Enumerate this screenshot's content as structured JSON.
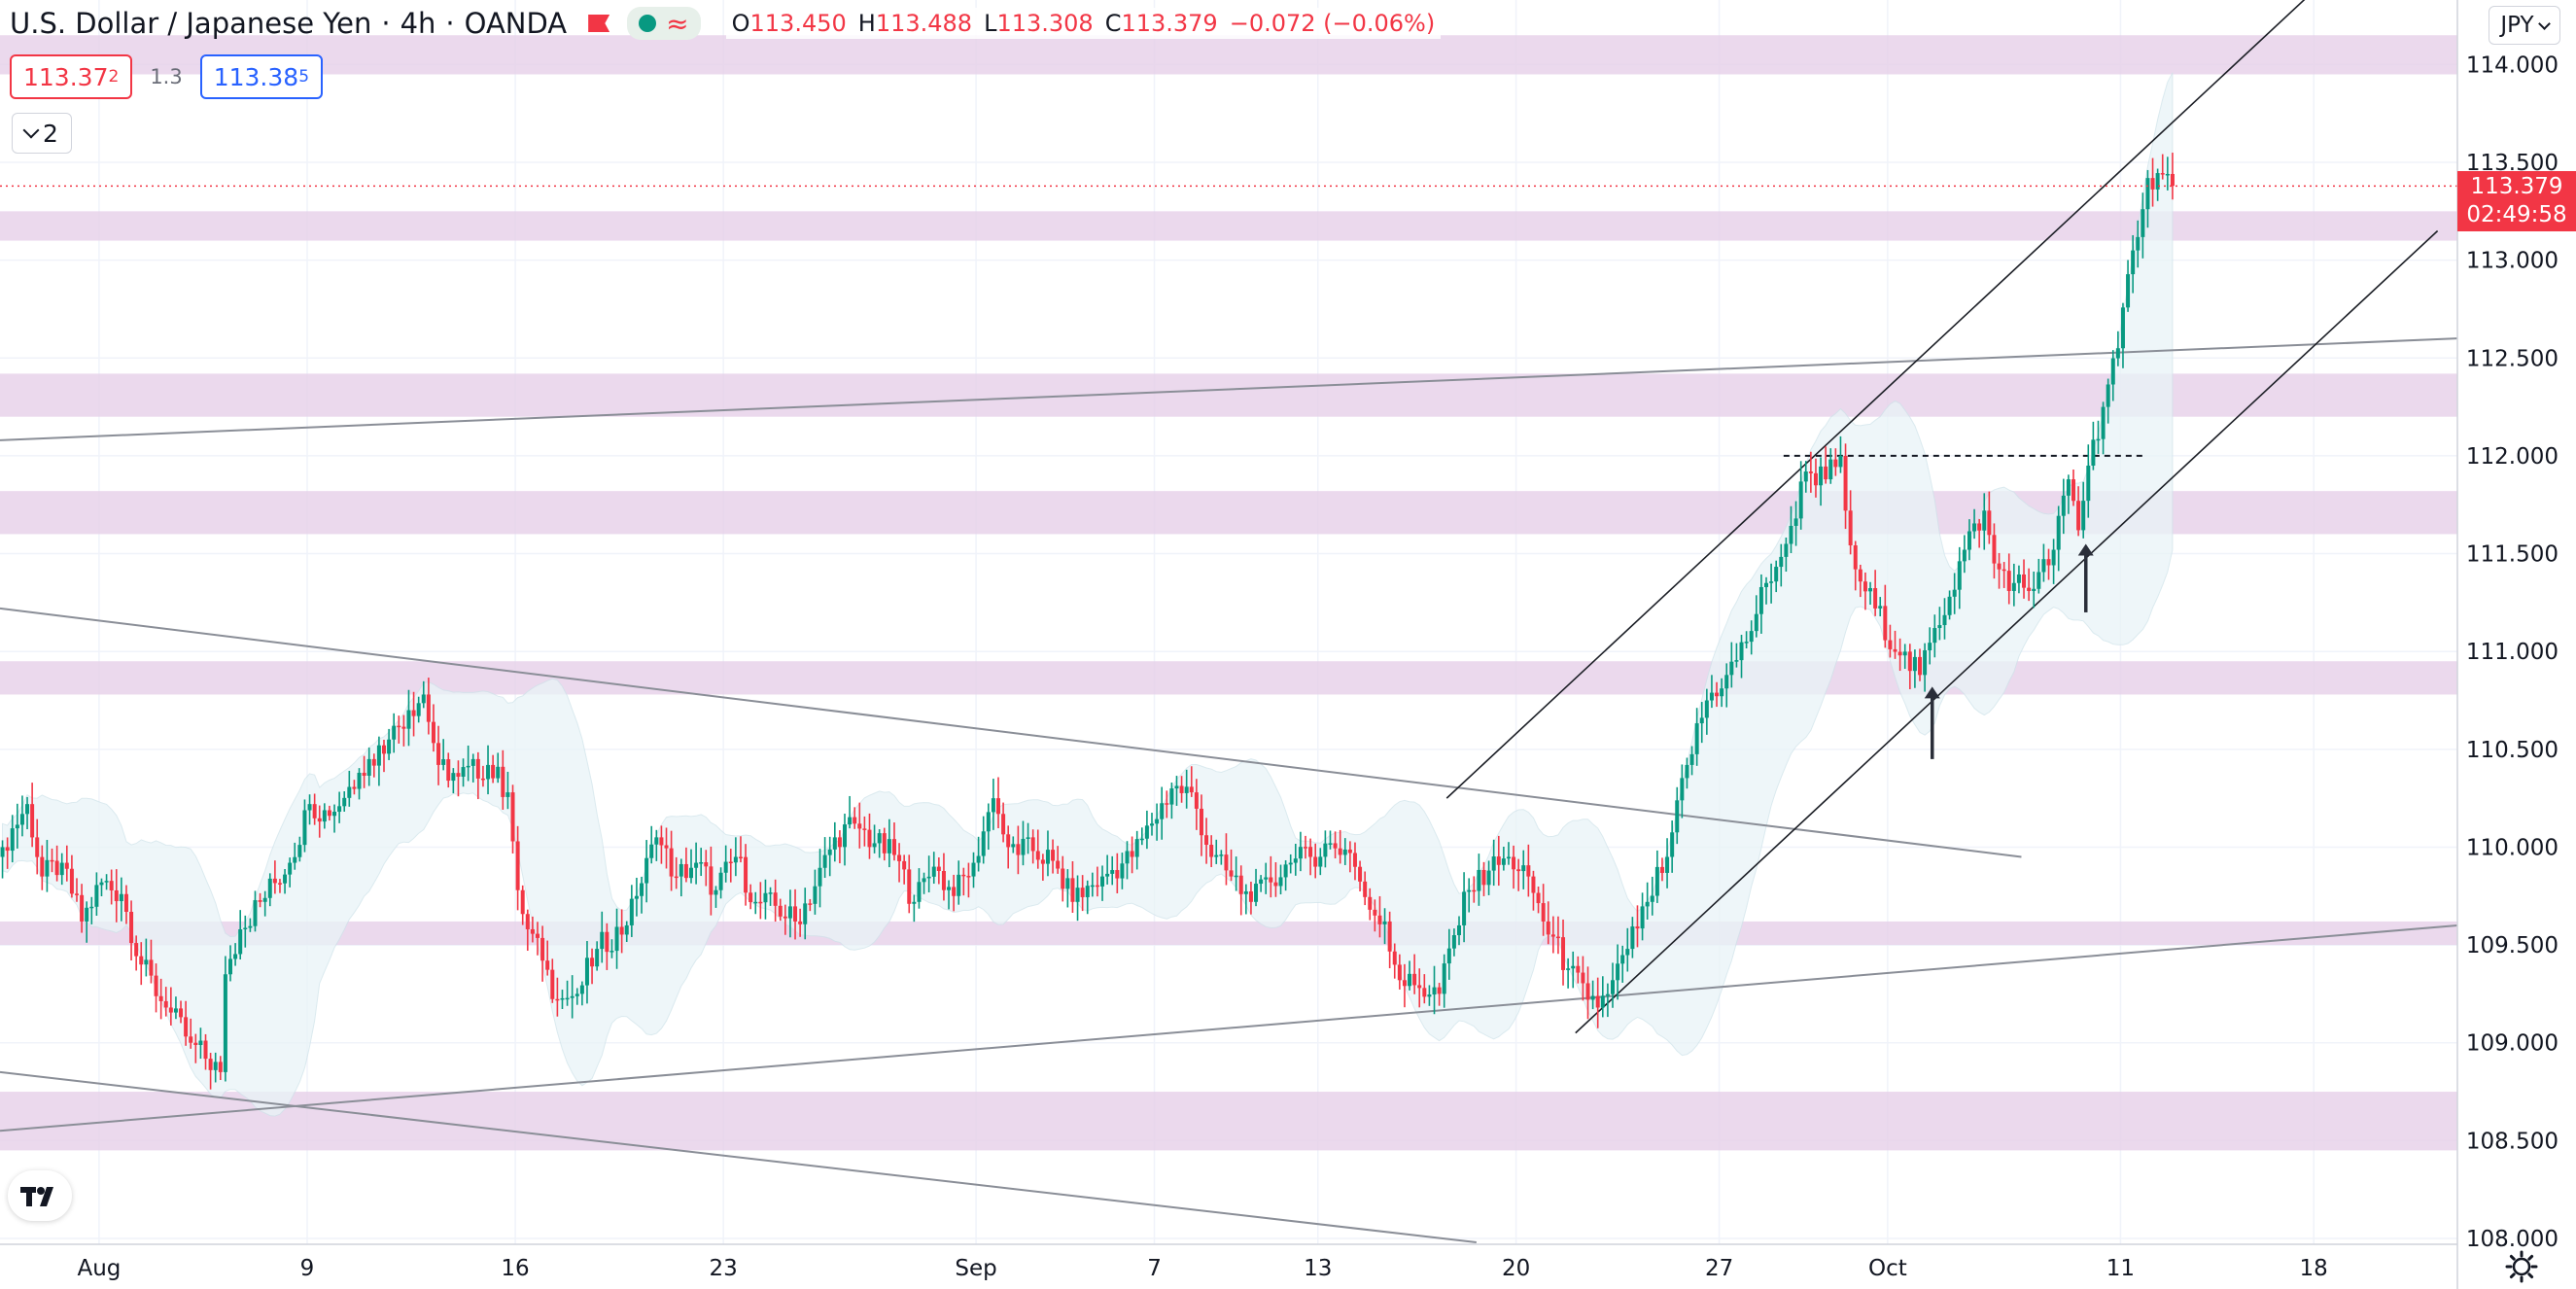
{
  "header": {
    "symbol_name": "U.S. Dollar / Japanese Yen",
    "interval": "4h",
    "broker": "OANDA",
    "ohlc": [
      {
        "label": "O",
        "value": "113.450"
      },
      {
        "label": "H",
        "value": "113.488"
      },
      {
        "label": "L",
        "value": "113.308"
      },
      {
        "label": "C",
        "value": "113.379"
      }
    ],
    "change": "−0.072 (−0.06%)",
    "sell_price": "113.37",
    "sell_price_sup": "2",
    "spread": "1.3",
    "buy_price": "113.38",
    "buy_price_sup": "5",
    "indicator_count": "2",
    "currency": "JPY"
  },
  "price_tag": {
    "price": "113.379",
    "countdown": "02:49:58"
  },
  "colors": {
    "up": "#089981",
    "down": "#f23645",
    "zone": "#e6cfe9",
    "band": "#e9f4f7",
    "grid": "#f0f3fa",
    "trendline": "#8a8e97",
    "channel": "#1c1f26"
  },
  "chart_data": {
    "type": "candlestick",
    "symbol": "USDJPY",
    "interval": "4h",
    "x_tick_labels": [
      "Aug",
      "9",
      "16",
      "23",
      "Sep",
      "7",
      "13",
      "20",
      "27",
      "Oct",
      "11",
      "18"
    ],
    "y_tick_labels": [
      "108.000",
      "108.500",
      "109.000",
      "109.500",
      "110.000",
      "110.500",
      "111.000",
      "111.500",
      "112.000",
      "112.500",
      "113.000",
      "113.500",
      "114.000"
    ],
    "ylim": [
      107.97,
      114.33
    ],
    "x_ticks": [
      {
        "label": "Aug",
        "bar": 20
      },
      {
        "label": "9",
        "bar": 62
      },
      {
        "label": "16",
        "bar": 104
      },
      {
        "label": "23",
        "bar": 146
      },
      {
        "label": "Sep",
        "bar": 197
      },
      {
        "label": "7",
        "bar": 233
      },
      {
        "label": "13",
        "bar": 266
      },
      {
        "label": "20",
        "bar": 306
      },
      {
        "label": "27",
        "bar": 347
      },
      {
        "label": "Oct",
        "bar": 381
      },
      {
        "label": "11",
        "bar": 428
      },
      {
        "label": "18",
        "bar": 467
      }
    ],
    "bars_total": 496,
    "path": [
      [
        0,
        110.0
      ],
      [
        5,
        110.22
      ],
      [
        8,
        109.85
      ],
      [
        12,
        109.92
      ],
      [
        16,
        109.62
      ],
      [
        20,
        109.82
      ],
      [
        24,
        109.76
      ],
      [
        28,
        109.4
      ],
      [
        33,
        109.18
      ],
      [
        38,
        109.0
      ],
      [
        44,
        108.85
      ],
      [
        45,
        109.35
      ],
      [
        48,
        109.58
      ],
      [
        52,
        109.72
      ],
      [
        58,
        109.92
      ],
      [
        62,
        110.22
      ],
      [
        66,
        110.16
      ],
      [
        72,
        110.38
      ],
      [
        78,
        110.55
      ],
      [
        82,
        110.7
      ],
      [
        85,
        110.78
      ],
      [
        88,
        110.42
      ],
      [
        92,
        110.36
      ],
      [
        98,
        110.42
      ],
      [
        102,
        110.28
      ],
      [
        104,
        109.78
      ],
      [
        106,
        109.58
      ],
      [
        109,
        109.42
      ],
      [
        112,
        109.22
      ],
      [
        116,
        109.25
      ],
      [
        120,
        109.48
      ],
      [
        126,
        109.6
      ],
      [
        128,
        109.75
      ],
      [
        132,
        110.05
      ],
      [
        136,
        109.85
      ],
      [
        140,
        109.92
      ],
      [
        144,
        109.78
      ],
      [
        148,
        109.95
      ],
      [
        152,
        109.72
      ],
      [
        156,
        109.7
      ],
      [
        160,
        109.62
      ],
      [
        164,
        109.8
      ],
      [
        168,
        110.05
      ],
      [
        172,
        110.12
      ],
      [
        176,
        110.02
      ],
      [
        180,
        109.96
      ],
      [
        184,
        109.72
      ],
      [
        188,
        109.9
      ],
      [
        192,
        109.75
      ],
      [
        196,
        109.92
      ],
      [
        200,
        110.25
      ],
      [
        203,
        110.0
      ],
      [
        208,
        109.98
      ],
      [
        212,
        109.93
      ],
      [
        216,
        109.72
      ],
      [
        222,
        109.85
      ],
      [
        228,
        109.95
      ],
      [
        232,
        110.12
      ],
      [
        236,
        110.3
      ],
      [
        240,
        110.28
      ],
      [
        244,
        109.95
      ],
      [
        248,
        109.85
      ],
      [
        252,
        109.72
      ],
      [
        256,
        109.82
      ],
      [
        260,
        109.92
      ],
      [
        264,
        109.95
      ],
      [
        268,
        110.02
      ],
      [
        272,
        109.97
      ],
      [
        276,
        109.68
      ],
      [
        279,
        109.62
      ],
      [
        282,
        109.32
      ],
      [
        286,
        109.28
      ],
      [
        290,
        109.25
      ],
      [
        293,
        109.55
      ],
      [
        296,
        109.78
      ],
      [
        300,
        109.88
      ],
      [
        304,
        109.95
      ],
      [
        308,
        109.85
      ],
      [
        311,
        109.62
      ],
      [
        316,
        109.38
      ],
      [
        320,
        109.22
      ],
      [
        322,
        109.18
      ],
      [
        325,
        109.32
      ],
      [
        328,
        109.48
      ],
      [
        332,
        109.72
      ],
      [
        336,
        109.95
      ],
      [
        340,
        110.42
      ],
      [
        344,
        110.75
      ],
      [
        348,
        110.88
      ],
      [
        352,
        111.05
      ],
      [
        356,
        111.35
      ],
      [
        360,
        111.55
      ],
      [
        364,
        111.92
      ],
      [
        368,
        111.88
      ],
      [
        371,
        112.0
      ],
      [
        372,
        111.72
      ],
      [
        374,
        111.42
      ],
      [
        378,
        111.22
      ],
      [
        383,
        110.98
      ],
      [
        387,
        110.88
      ],
      [
        390,
        111.12
      ],
      [
        393,
        111.28
      ],
      [
        396,
        111.52
      ],
      [
        400,
        111.72
      ],
      [
        402,
        111.45
      ],
      [
        406,
        111.35
      ],
      [
        410,
        111.32
      ],
      [
        414,
        111.52
      ],
      [
        417,
        111.88
      ],
      [
        419,
        111.62
      ],
      [
        421,
        111.95
      ],
      [
        424,
        112.25
      ],
      [
        427,
        112.55
      ],
      [
        430,
        113.05
      ],
      [
        433,
        113.42
      ],
      [
        436,
        113.44
      ],
      [
        438,
        113.38
      ]
    ],
    "purple_zones": [
      [
        113.95,
        114.15
      ],
      [
        113.1,
        113.25
      ],
      [
        112.2,
        112.42
      ],
      [
        111.6,
        111.82
      ],
      [
        110.78,
        110.95
      ],
      [
        109.5,
        109.62
      ],
      [
        108.45,
        108.75
      ]
    ],
    "trendlines": [
      {
        "from": [
          0,
          112.08
        ],
        "to": [
          496,
          112.6
        ],
        "style": "gray"
      },
      {
        "from": [
          0,
          111.22
        ],
        "to": [
          408,
          109.95
        ],
        "style": "gray"
      },
      {
        "from": [
          0,
          108.55
        ],
        "to": [
          496,
          109.6
        ],
        "style": "gray"
      },
      {
        "from": [
          0,
          108.85
        ],
        "to": [
          298,
          107.98
        ],
        "style": "gray"
      },
      {
        "from": [
          292,
          110.25
        ],
        "to": [
          468,
          114.4
        ],
        "style": "dark"
      },
      {
        "from": [
          318,
          109.05
        ],
        "to": [
          492,
          113.15
        ],
        "style": "dark"
      }
    ],
    "dashed_level": {
      "price": 112.0,
      "from_bar": 360,
      "to_bar": 433
    },
    "current_price_line": 113.379,
    "arrows": [
      {
        "bar": 390,
        "from": 110.45,
        "to": 110.82
      },
      {
        "bar": 421,
        "from": 111.2,
        "to": 111.55
      }
    ]
  }
}
